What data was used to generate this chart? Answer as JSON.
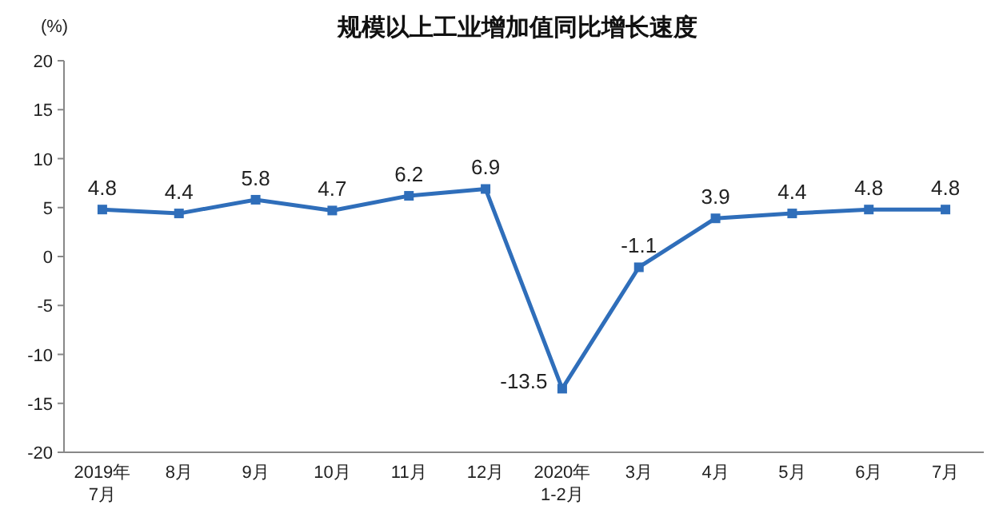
{
  "chart_data": {
    "type": "line",
    "title": "规模以上工业增加值同比增长速度",
    "ylabel": "(%)",
    "categories": [
      "2019年\n7月",
      "8月",
      "9月",
      "10月",
      "11月",
      "12月",
      "2020年\n1-2月",
      "3月",
      "4月",
      "5月",
      "6月",
      "7月"
    ],
    "series": [
      {
        "color": "#2f6eba",
        "values": [
          4.8,
          4.4,
          5.8,
          4.7,
          6.2,
          6.9,
          -13.5,
          -1.1,
          3.9,
          4.4,
          4.8,
          4.8
        ]
      }
    ],
    "ylim": [
      -20,
      20
    ],
    "yticks": [
      -20,
      -15,
      -10,
      -5,
      0,
      5,
      10,
      15,
      20
    ],
    "data_labels": true,
    "marker": "square",
    "line_style": "solid",
    "grid": false
  }
}
